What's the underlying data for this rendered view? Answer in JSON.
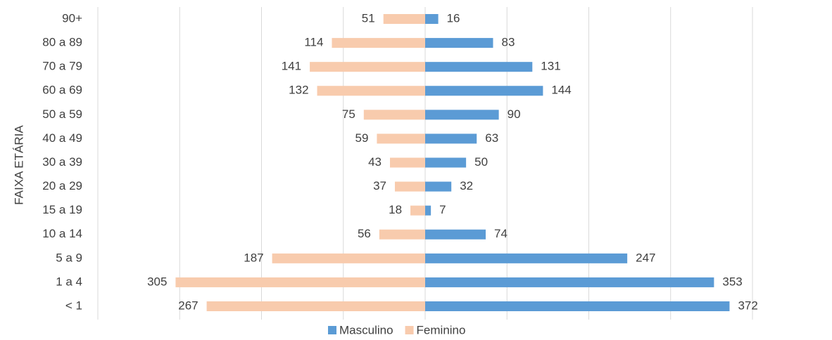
{
  "chart_data": {
    "type": "pyramid",
    "y_label": "FAIXA ETÁRIA",
    "categories": [
      "< 1",
      "1 a 4",
      "5 a 9",
      "10 a 14",
      "15 a 19",
      "20 a 29",
      "30 a 39",
      "40 a 49",
      "50 a 59",
      "60 a 69",
      "70 a 79",
      "80 a 89",
      "90+"
    ],
    "series": [
      {
        "name": "Masculino",
        "color": "#5b9bd5",
        "side": "right",
        "values": [
          372,
          353,
          247,
          74,
          7,
          32,
          50,
          63,
          90,
          144,
          131,
          83,
          16
        ]
      },
      {
        "name": "Feminino",
        "color": "#f8cbad",
        "side": "left",
        "values": [
          267,
          305,
          187,
          56,
          18,
          37,
          43,
          59,
          75,
          132,
          141,
          114,
          51
        ]
      }
    ],
    "xlim": [
      -400,
      400
    ],
    "xticks": [
      -400,
      -300,
      -200,
      -100,
      0,
      100,
      200,
      300,
      400
    ],
    "grid": true,
    "legend": "bottom"
  }
}
